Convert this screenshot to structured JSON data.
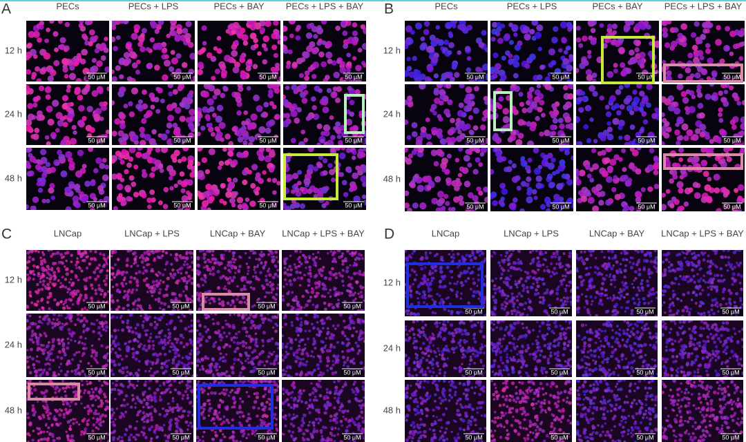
{
  "panels": [
    {
      "label": "A",
      "columns": [
        "PECs",
        "PECs + LPS",
        "PECs + BAY",
        "PECs + LPS + BAY"
      ],
      "rows": [
        "12 h",
        "24 h",
        "48 h"
      ],
      "scale_label": "50 μM"
    },
    {
      "label": "B",
      "columns": [
        "PECs",
        "PECs + LPS",
        "PECs + BAY",
        "PECs + LPS + BAY"
      ],
      "rows": [
        "12 h",
        "24 h",
        "48 h"
      ],
      "scale_label": "50 μM"
    },
    {
      "label": "C",
      "columns": [
        "LNCap",
        "LNCap + LPS",
        "LNCap + BAY",
        "LNCap + LPS + BAY"
      ],
      "rows": [
        "12 h",
        "24 h",
        "48 h"
      ],
      "scale_label": "50 μM"
    },
    {
      "label": "D",
      "columns": [
        "LNCap",
        "LNCap + LPS",
        "LNCap + BAY",
        "LNCap + LPS + BAY"
      ],
      "rows": [
        "12 h",
        "24 h",
        "48 h"
      ],
      "scale_label": "50 μM"
    }
  ]
}
